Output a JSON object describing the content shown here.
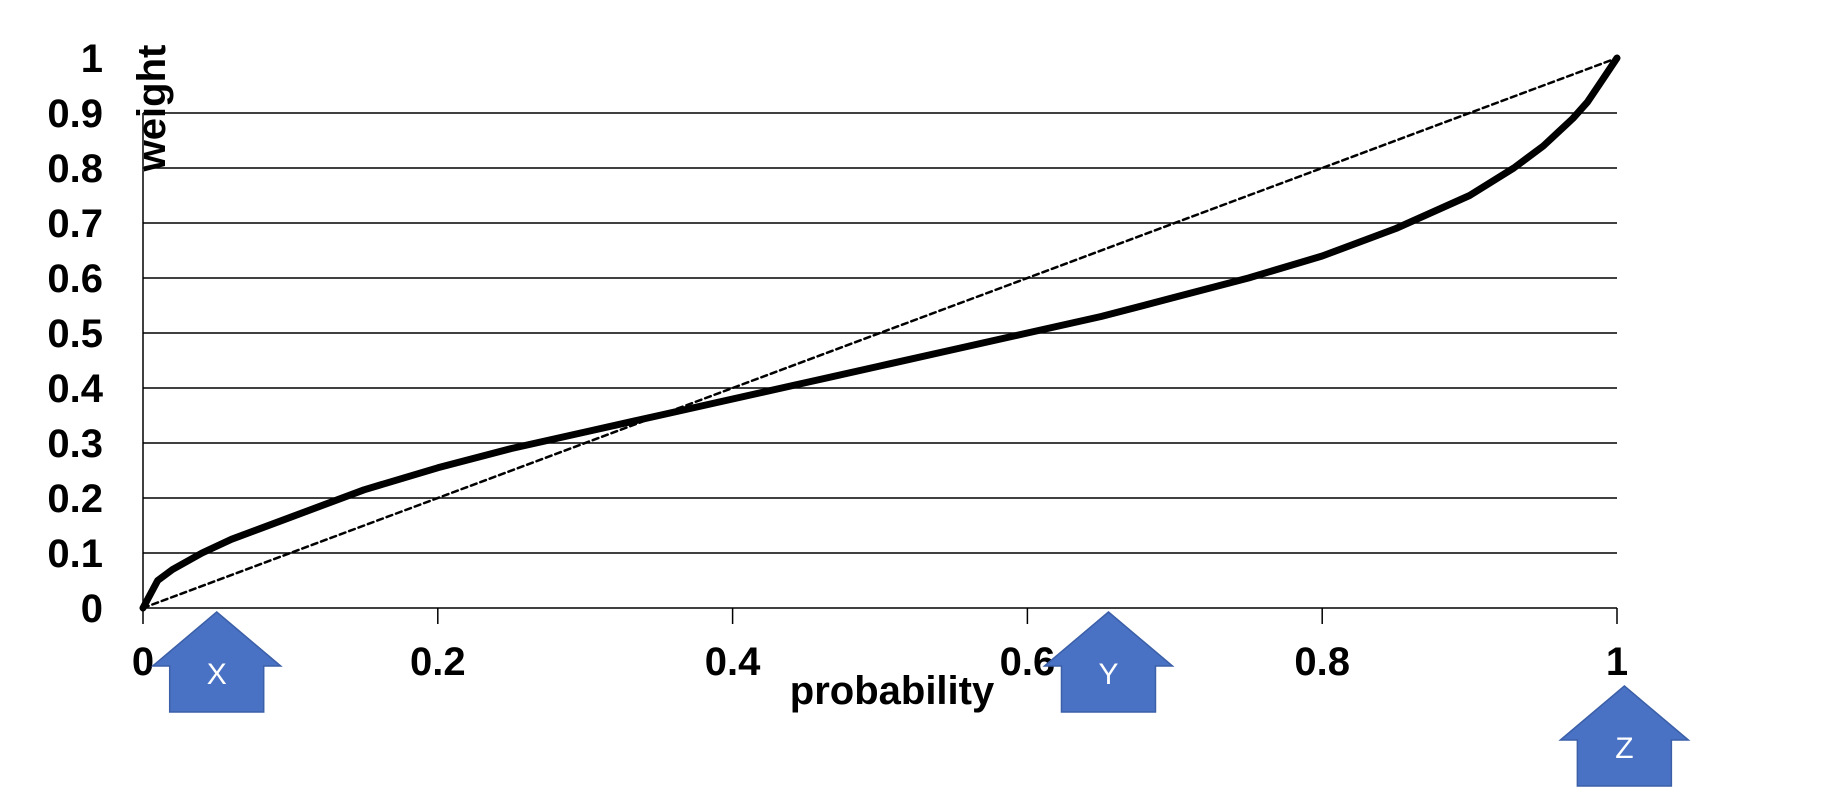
{
  "chart_data": {
    "type": "line",
    "xlabel": "probability",
    "ylabel": "weight",
    "xlim": [
      0,
      1
    ],
    "ylim": [
      0,
      1
    ],
    "grid": "horizontal",
    "x_ticks": [
      "0",
      "0.2",
      "0.4",
      "0.6",
      "0.8",
      "1"
    ],
    "y_ticks": [
      "0",
      "0.1",
      "0.2",
      "0.3",
      "0.4",
      "0.5",
      "0.6",
      "0.7",
      "0.8",
      "0.9",
      "1"
    ],
    "series": [
      {
        "style": "solid-thick",
        "color": "#000000",
        "x": [
          0,
          0.01,
          0.02,
          0.04,
          0.06,
          0.08,
          0.1,
          0.15,
          0.2,
          0.25,
          0.3,
          0.35,
          0.4,
          0.45,
          0.5,
          0.55,
          0.6,
          0.65,
          0.7,
          0.75,
          0.8,
          0.85,
          0.9,
          0.93,
          0.95,
          0.97,
          0.98,
          0.99,
          1.0
        ],
        "y": [
          0,
          0.05,
          0.07,
          0.1,
          0.125,
          0.145,
          0.165,
          0.215,
          0.255,
          0.29,
          0.32,
          0.35,
          0.38,
          0.41,
          0.44,
          0.47,
          0.5,
          0.53,
          0.565,
          0.6,
          0.64,
          0.69,
          0.75,
          0.8,
          0.84,
          0.89,
          0.92,
          0.96,
          1.0
        ]
      },
      {
        "style": "dashed",
        "color": "#000000",
        "x": [
          0,
          1
        ],
        "y": [
          0,
          1
        ]
      }
    ],
    "annotations": [
      {
        "label": "X",
        "x": 0.05,
        "row": 1
      },
      {
        "label": "Y",
        "x": 0.655,
        "row": 1
      },
      {
        "label": "Z",
        "x": 1.005,
        "row": 2
      }
    ],
    "colors": {
      "curve": "#000000",
      "grid": "#000000",
      "arrow_fill": "#4a72c4",
      "arrow_stroke": "#3b5fa8",
      "arrow_text": "#ffffff"
    }
  }
}
